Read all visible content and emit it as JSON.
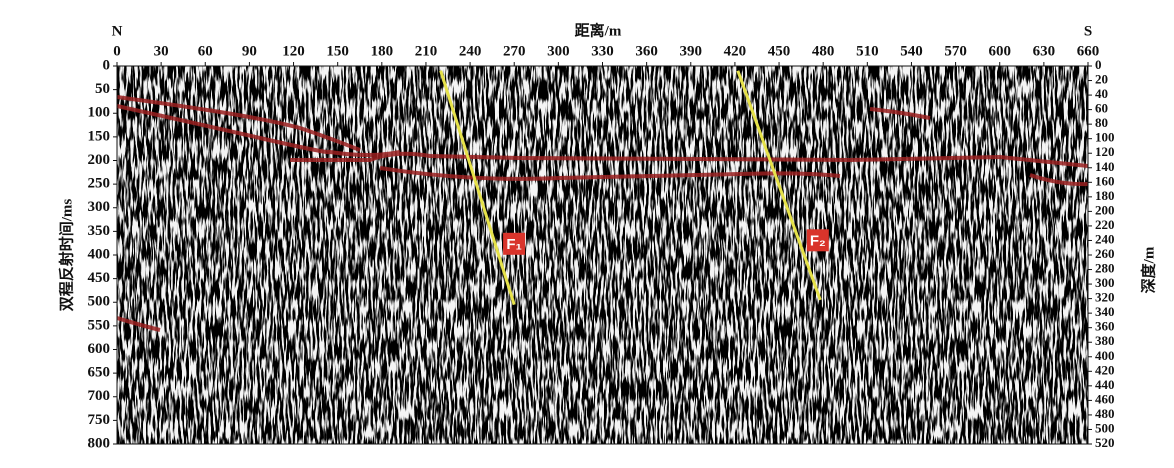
{
  "chart_data": {
    "type": "seismic",
    "x_label": "距离/m",
    "y_label": "双程反射时间/ms",
    "y2_label": "深度/m",
    "left_end": "N",
    "right_end": "S",
    "xlim": [
      0,
      660
    ],
    "xticks": [
      0,
      30,
      60,
      90,
      120,
      150,
      180,
      210,
      240,
      270,
      300,
      330,
      360,
      390,
      420,
      450,
      480,
      510,
      540,
      570,
      600,
      630,
      660
    ],
    "ylim": [
      0,
      800
    ],
    "yticks": [
      0,
      50,
      100,
      150,
      200,
      250,
      300,
      350,
      400,
      450,
      500,
      550,
      600,
      650,
      700,
      750,
      800
    ],
    "y2lim": [
      0,
      520
    ],
    "y2ticks": [
      0,
      20,
      40,
      60,
      80,
      100,
      120,
      140,
      160,
      180,
      200,
      220,
      240,
      260,
      280,
      300,
      320,
      340,
      360,
      380,
      400,
      420,
      440,
      460,
      480,
      500,
      520
    ],
    "faults": [
      {
        "label": "F₁",
        "color": "#e6e24a",
        "x": [
          220,
          270
        ],
        "y": [
          10,
          505
        ]
      },
      {
        "label": "F₂",
        "color": "#e6e24a",
        "x": [
          422,
          478
        ],
        "y": [
          10,
          495
        ]
      }
    ]
  }
}
